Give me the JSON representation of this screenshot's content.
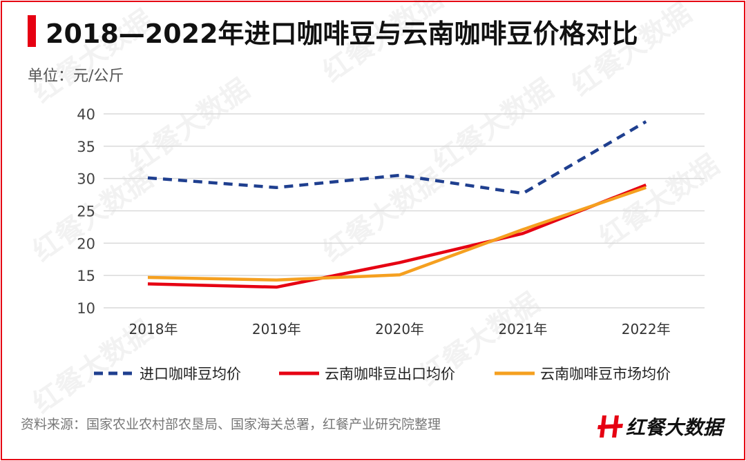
{
  "title": "2018—2022年进口咖啡豆与云南咖啡豆价格对比",
  "unit": "单位：元/公斤",
  "source": "资料来源：国家农业农村部农垦局、国家海关总署，红餐产业研究院整理",
  "logo": "红餐大数据",
  "watermark": "红餐大数据",
  "chart_data": {
    "type": "line",
    "categories": [
      "2018年",
      "2019年",
      "2020年",
      "2021年",
      "2022年"
    ],
    "ylim": [
      10,
      40
    ],
    "yticks": [
      "10",
      "15",
      "20",
      "25",
      "30",
      "35",
      "40"
    ],
    "grid": true,
    "legend_position": "bottom",
    "series": [
      {
        "name": "进口咖啡豆均价",
        "color": "#1f3f8f",
        "style": "dashed",
        "values": [
          30.1,
          28.6,
          30.5,
          27.7,
          38.8
        ]
      },
      {
        "name": "云南咖啡豆出口均价",
        "color": "#e60012",
        "style": "solid",
        "values": [
          13.7,
          13.2,
          17.0,
          21.5,
          29.0
        ]
      },
      {
        "name": "云南咖啡豆市场均价",
        "color": "#f5a020",
        "style": "solid",
        "values": [
          14.7,
          14.3,
          15.1,
          22.1,
          28.6
        ]
      }
    ]
  }
}
